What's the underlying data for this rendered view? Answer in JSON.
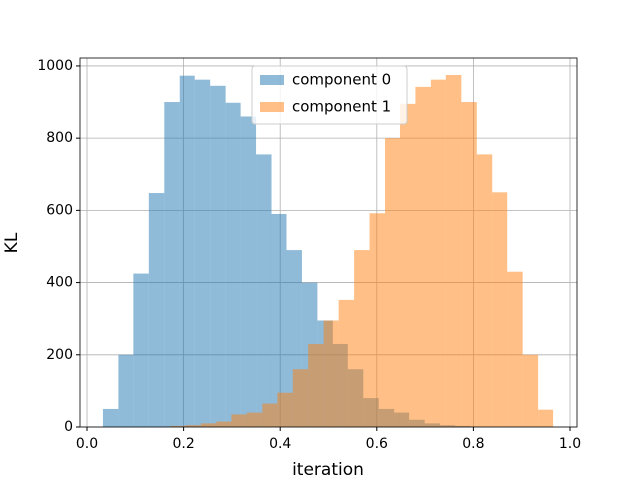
{
  "chart_data": {
    "type": "histogram",
    "xlabel": "iteration",
    "ylabel": "KL",
    "xlim": [
      -0.0145,
      1.0145
    ],
    "ylim": [
      0,
      1022
    ],
    "xticks": [
      {
        "value": 0,
        "label": "0.0"
      },
      0.2,
      0.4,
      0.6,
      0.8,
      {
        "value": 1,
        "label": "1.0"
      }
    ],
    "yticks": [
      0,
      200,
      400,
      600,
      800,
      1000
    ],
    "grid": true,
    "legend": "upper center",
    "alpha": 0.5,
    "series": [
      {
        "name": "component 0",
        "color": "#1f77b4",
        "bins": [
          0.033,
          0.065,
          0.096,
          0.128,
          0.16,
          0.192,
          0.223,
          0.255,
          0.287,
          0.318,
          0.35,
          0.382,
          0.413,
          0.445,
          0.477,
          0.509,
          0.54,
          0.572,
          0.604,
          0.636,
          0.667,
          0.699,
          0.731,
          0.762,
          0.794
        ],
        "values": [
          50,
          200,
          425,
          648,
          900,
          973,
          962,
          945,
          898,
          860,
          755,
          590,
          490,
          400,
          295,
          230,
          160,
          80,
          50,
          40,
          20,
          10,
          5,
          3
        ]
      },
      {
        "name": "component 1",
        "color": "#ff7f0e",
        "bins": [
          0.172,
          0.204,
          0.236,
          0.268,
          0.299,
          0.331,
          0.363,
          0.394,
          0.426,
          0.458,
          0.49,
          0.521,
          0.553,
          0.585,
          0.617,
          0.648,
          0.68,
          0.712,
          0.743,
          0.775,
          0.807,
          0.839,
          0.87,
          0.902,
          0.934,
          0.965
        ],
        "values": [
          3,
          5,
          10,
          15,
          35,
          40,
          65,
          95,
          160,
          230,
          295,
          352,
          490,
          592,
          800,
          895,
          942,
          962,
          975,
          900,
          755,
          650,
          430,
          200,
          48
        ]
      }
    ]
  }
}
